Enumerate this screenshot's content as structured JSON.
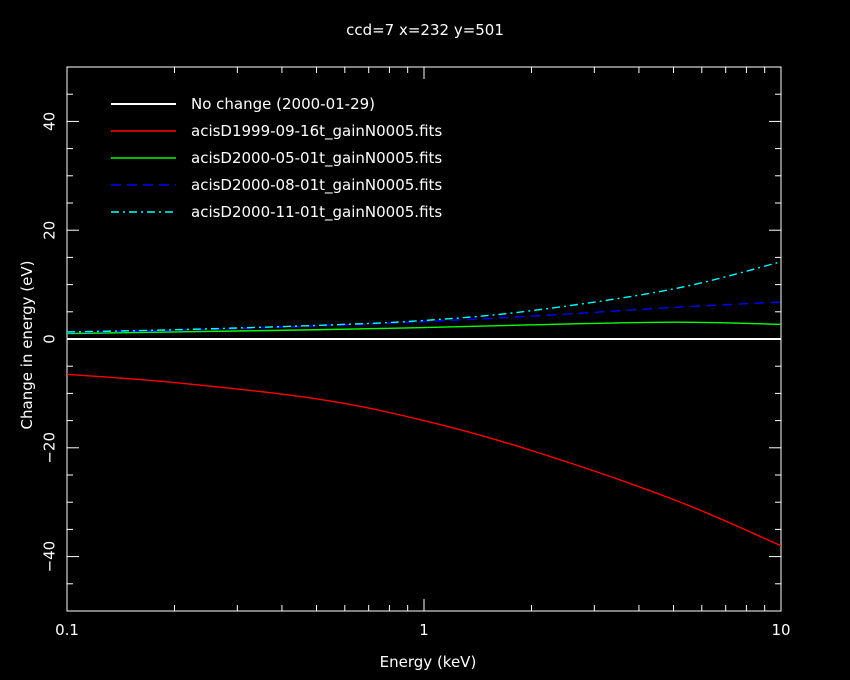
{
  "chart_data": {
    "type": "line",
    "title": "ccd=7 x=232 y=501",
    "xlabel": "Energy (keV)",
    "ylabel": "Change in energy (eV)",
    "xscale": "log",
    "xlim": [
      0.1,
      10
    ],
    "ylim": [
      -50,
      50
    ],
    "grid": false,
    "legend_position": "top-left",
    "x_ticks": [
      {
        "value": 0.1,
        "label": "0.1"
      },
      {
        "value": 1,
        "label": "1"
      },
      {
        "value": 10,
        "label": "10"
      }
    ],
    "y_ticks": [
      {
        "value": -40,
        "label": "−40"
      },
      {
        "value": -20,
        "label": "−20"
      },
      {
        "value": 0,
        "label": "0"
      },
      {
        "value": 20,
        "label": "20"
      },
      {
        "value": 40,
        "label": "40"
      }
    ],
    "x": [
      0.1,
      0.2,
      0.5,
      1,
      2,
      5,
      10
    ],
    "series": [
      {
        "name": "No change (2000-01-29)",
        "color": "#ffffff",
        "dash": "solid",
        "values": [
          0,
          0,
          0,
          0,
          0,
          0,
          0
        ]
      },
      {
        "name": "acisD1999-09-16t_gainN0005.fits",
        "color": "#ff0000",
        "dash": "solid",
        "values": [
          -6.5,
          -8,
          -11,
          -15,
          -20.5,
          -29.5,
          -38
        ]
      },
      {
        "name": "acisD2000-05-01t_gainN0005.fits",
        "color": "#00ff00",
        "dash": "solid",
        "values": [
          1,
          1.3,
          1.7,
          2.1,
          2.6,
          3.1,
          2.7
        ]
      },
      {
        "name": "acisD2000-08-01t_gainN0005.fits",
        "color": "#0000ff",
        "dash": "dashed",
        "values": [
          1.2,
          1.6,
          2.4,
          3.2,
          4.2,
          5.8,
          6.8
        ]
      },
      {
        "name": "acisD2000-11-01t_gainN0005.fits",
        "color": "#00ffff",
        "dash": "dashdot",
        "values": [
          1.3,
          1.7,
          2.5,
          3.4,
          5.2,
          9.2,
          14.2
        ]
      }
    ]
  }
}
